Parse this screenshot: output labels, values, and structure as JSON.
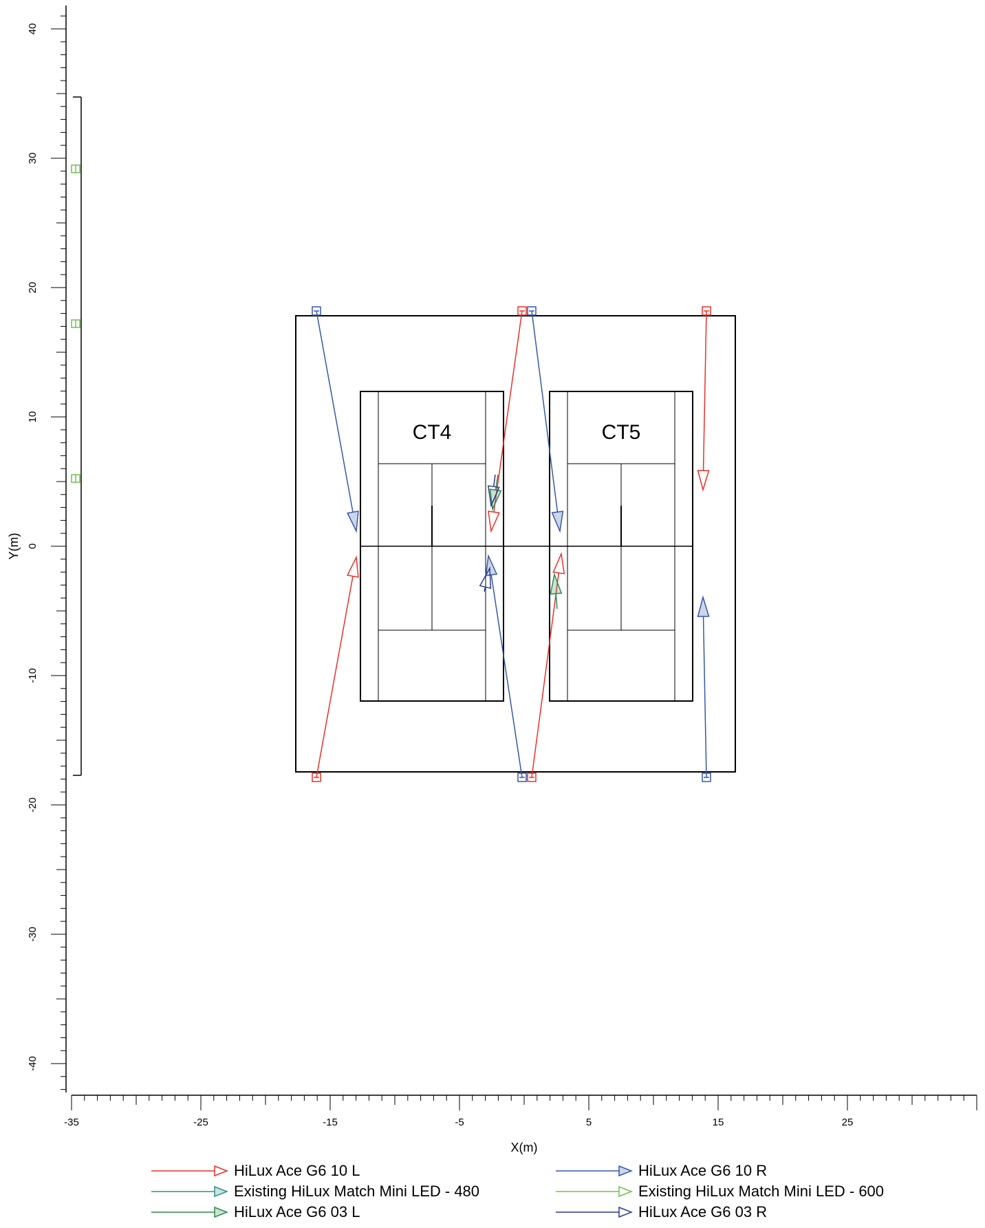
{
  "diagram": {
    "xlabel": "X(m)",
    "ylabel": "Y(m)",
    "x_ticks": [
      "-35",
      "-25",
      "-15",
      "-5",
      "5",
      "15",
      "25"
    ],
    "y_ticks": [
      "40",
      "30",
      "20",
      "10",
      "0",
      "-10",
      "-20",
      "-30",
      "-40"
    ],
    "courts": [
      {
        "label": "CT4"
      },
      {
        "label": "CT5"
      }
    ],
    "legend": [
      {
        "label": "HiLux Ace G6 10 L",
        "color": "#e8302a",
        "head": "open"
      },
      {
        "label": "HiLux Ace G6 10 R",
        "color": "#3657a8",
        "head": "filled"
      },
      {
        "label": "Existing HiLux Match Mini LED - 480",
        "color": "#2e8f8a",
        "head": "filled"
      },
      {
        "label": "Existing HiLux Match Mini LED - 600",
        "color": "#6ec04e",
        "head": "open"
      },
      {
        "label": "HiLux Ace G6 03 L",
        "color": "#2e8a4f",
        "head": "filled"
      },
      {
        "label": "HiLux Ace G6 03 R",
        "color": "#2d3a8c",
        "head": "open"
      }
    ]
  }
}
